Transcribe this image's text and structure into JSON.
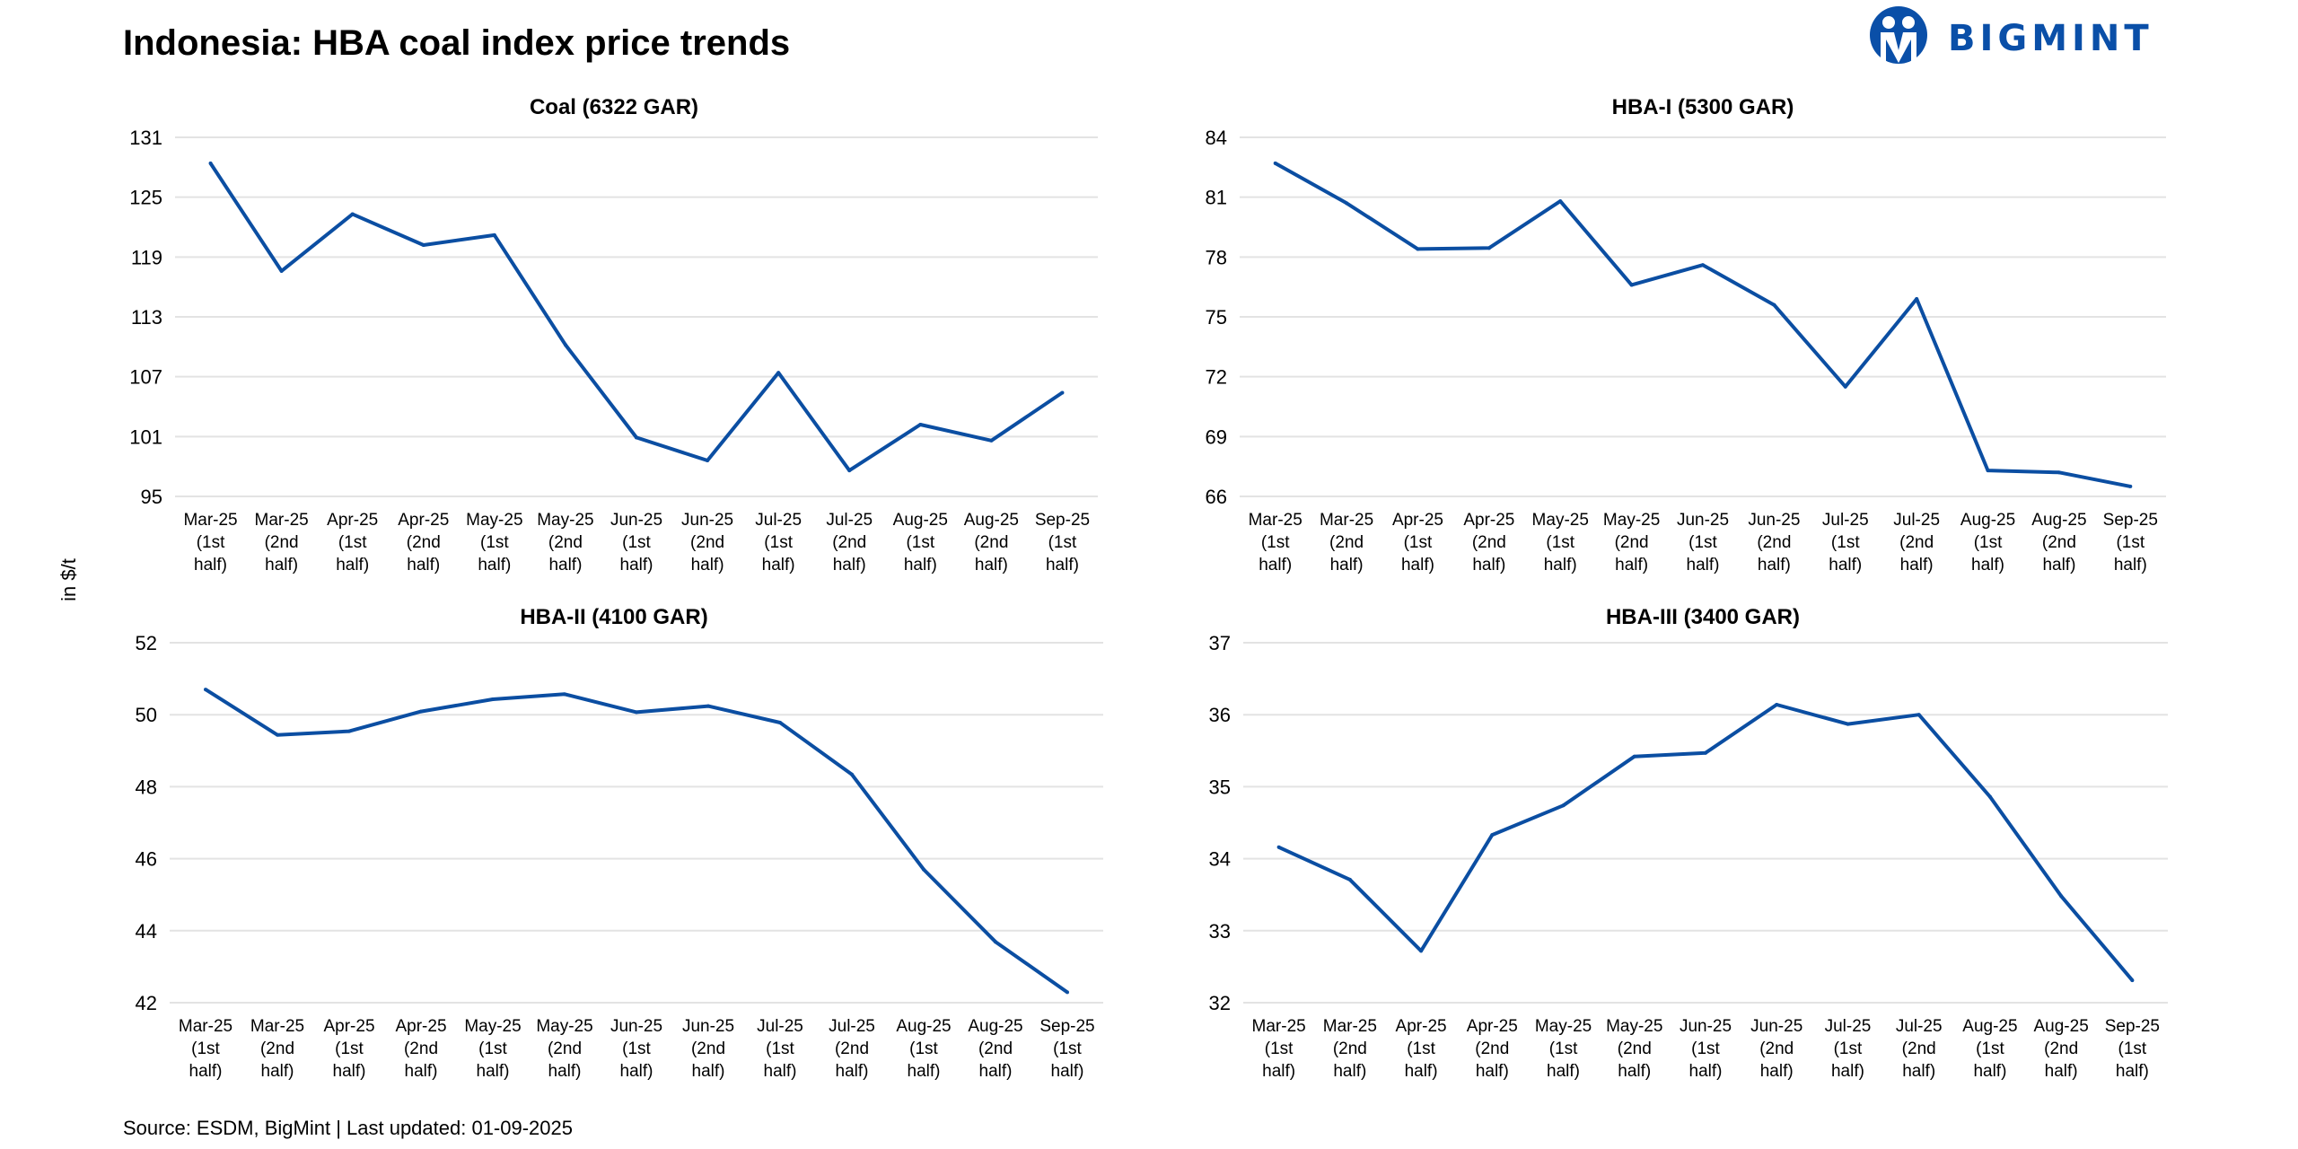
{
  "title": "Indonesia: HBA coal index price trends",
  "source": "Source: ESDM, BigMint | Last updated: 01-09-2025",
  "logo_text": "BIGMINT",
  "ylabel": "in $/t",
  "colors": {
    "line": "#0b4ea2",
    "grid": "#e3e3e3",
    "logo": "#0a4fa8"
  },
  "chart_data": [
    {
      "type": "line",
      "title": "Coal (6322 GAR)",
      "categories": [
        [
          "Mar-25",
          "(1st",
          "half)"
        ],
        [
          "Mar-25",
          "(2nd",
          "half)"
        ],
        [
          "Apr-25",
          "(1st",
          "half)"
        ],
        [
          "Apr-25",
          "(2nd",
          "half)"
        ],
        [
          "May-25",
          "(1st",
          "half)"
        ],
        [
          "May-25",
          "(2nd",
          "half)"
        ],
        [
          "Jun-25",
          "(1st",
          "half)"
        ],
        [
          "Jun-25",
          "(2nd",
          "half)"
        ],
        [
          "Jul-25",
          "(1st",
          "half)"
        ],
        [
          "Jul-25",
          "(2nd",
          "half)"
        ],
        [
          "Aug-25",
          "(1st",
          "half)"
        ],
        [
          "Aug-25",
          "(2nd",
          "half)"
        ],
        [
          "Sep-25",
          "(1st",
          "half)"
        ]
      ],
      "values": [
        128.4,
        117.6,
        123.3,
        120.2,
        121.2,
        110.2,
        100.9,
        98.6,
        107.4,
        97.6,
        102.2,
        100.6,
        105.4
      ],
      "ylim": [
        95,
        131
      ],
      "yticks": [
        95,
        101,
        107,
        113,
        119,
        125,
        131
      ],
      "grid": true
    },
    {
      "type": "line",
      "title": "HBA-I (5300 GAR)",
      "categories": [
        [
          "Mar-25",
          "(1st",
          "half)"
        ],
        [
          "Mar-25",
          "(2nd",
          "half)"
        ],
        [
          "Apr-25",
          "(1st",
          "half)"
        ],
        [
          "Apr-25",
          "(2nd",
          "half)"
        ],
        [
          "May-25",
          "(1st",
          "half)"
        ],
        [
          "May-25",
          "(2nd",
          "half)"
        ],
        [
          "Jun-25",
          "(1st",
          "half)"
        ],
        [
          "Jun-25",
          "(2nd",
          "half)"
        ],
        [
          "Jul-25",
          "(1st",
          "half)"
        ],
        [
          "Jul-25",
          "(2nd",
          "half)"
        ],
        [
          "Aug-25",
          "(1st",
          "half)"
        ],
        [
          "Aug-25",
          "(2nd",
          "half)"
        ],
        [
          "Sep-25",
          "(1st",
          "half)"
        ]
      ],
      "values": [
        82.7,
        80.7,
        78.4,
        78.45,
        80.8,
        76.6,
        77.6,
        75.6,
        71.5,
        75.9,
        67.3,
        67.2,
        66.5
      ],
      "ylim": [
        66,
        84
      ],
      "yticks": [
        66,
        69,
        72,
        75,
        78,
        81,
        84
      ],
      "grid": true
    },
    {
      "type": "line",
      "title": "HBA-II (4100 GAR)",
      "categories": [
        [
          "Mar-25",
          "(1st",
          "half)"
        ],
        [
          "Mar-25",
          "(2nd",
          "half)"
        ],
        [
          "Apr-25",
          "(1st",
          "half)"
        ],
        [
          "Apr-25",
          "(2nd",
          "half)"
        ],
        [
          "May-25",
          "(1st",
          "half)"
        ],
        [
          "May-25",
          "(2nd",
          "half)"
        ],
        [
          "Jun-25",
          "(1st",
          "half)"
        ],
        [
          "Jun-25",
          "(2nd",
          "half)"
        ],
        [
          "Jul-25",
          "(1st",
          "half)"
        ],
        [
          "Jul-25",
          "(2nd",
          "half)"
        ],
        [
          "Aug-25",
          "(1st",
          "half)"
        ],
        [
          "Aug-25",
          "(2nd",
          "half)"
        ],
        [
          "Sep-25",
          "(1st",
          "half)"
        ]
      ],
      "values": [
        50.7,
        49.44,
        49.54,
        50.09,
        50.43,
        50.57,
        50.07,
        50.24,
        49.78,
        48.34,
        45.7,
        43.69,
        42.29
      ],
      "ylim": [
        42,
        52
      ],
      "yticks": [
        42,
        44,
        46,
        48,
        50,
        52
      ],
      "grid": true
    },
    {
      "type": "line",
      "title": "HBA-III (3400 GAR)",
      "categories": [
        [
          "Mar-25",
          "(1st",
          "half)"
        ],
        [
          "Mar-25",
          "(2nd",
          "half)"
        ],
        [
          "Apr-25",
          "(1st",
          "half)"
        ],
        [
          "Apr-25",
          "(2nd",
          "half)"
        ],
        [
          "May-25",
          "(1st",
          "half)"
        ],
        [
          "May-25",
          "(2nd",
          "half)"
        ],
        [
          "Jun-25",
          "(1st",
          "half)"
        ],
        [
          "Jun-25",
          "(2nd",
          "half)"
        ],
        [
          "Jul-25",
          "(1st",
          "half)"
        ],
        [
          "Jul-25",
          "(2nd",
          "half)"
        ],
        [
          "Aug-25",
          "(1st",
          "half)"
        ],
        [
          "Aug-25",
          "(2nd",
          "half)"
        ],
        [
          "Sep-25",
          "(1st",
          "half)"
        ]
      ],
      "values": [
        34.16,
        33.71,
        32.72,
        34.33,
        34.74,
        35.42,
        35.47,
        36.14,
        35.87,
        36.0,
        34.86,
        33.48,
        32.31
      ],
      "ylim": [
        32,
        37
      ],
      "yticks": [
        32,
        33,
        34,
        35,
        36,
        37
      ],
      "grid": true
    }
  ]
}
